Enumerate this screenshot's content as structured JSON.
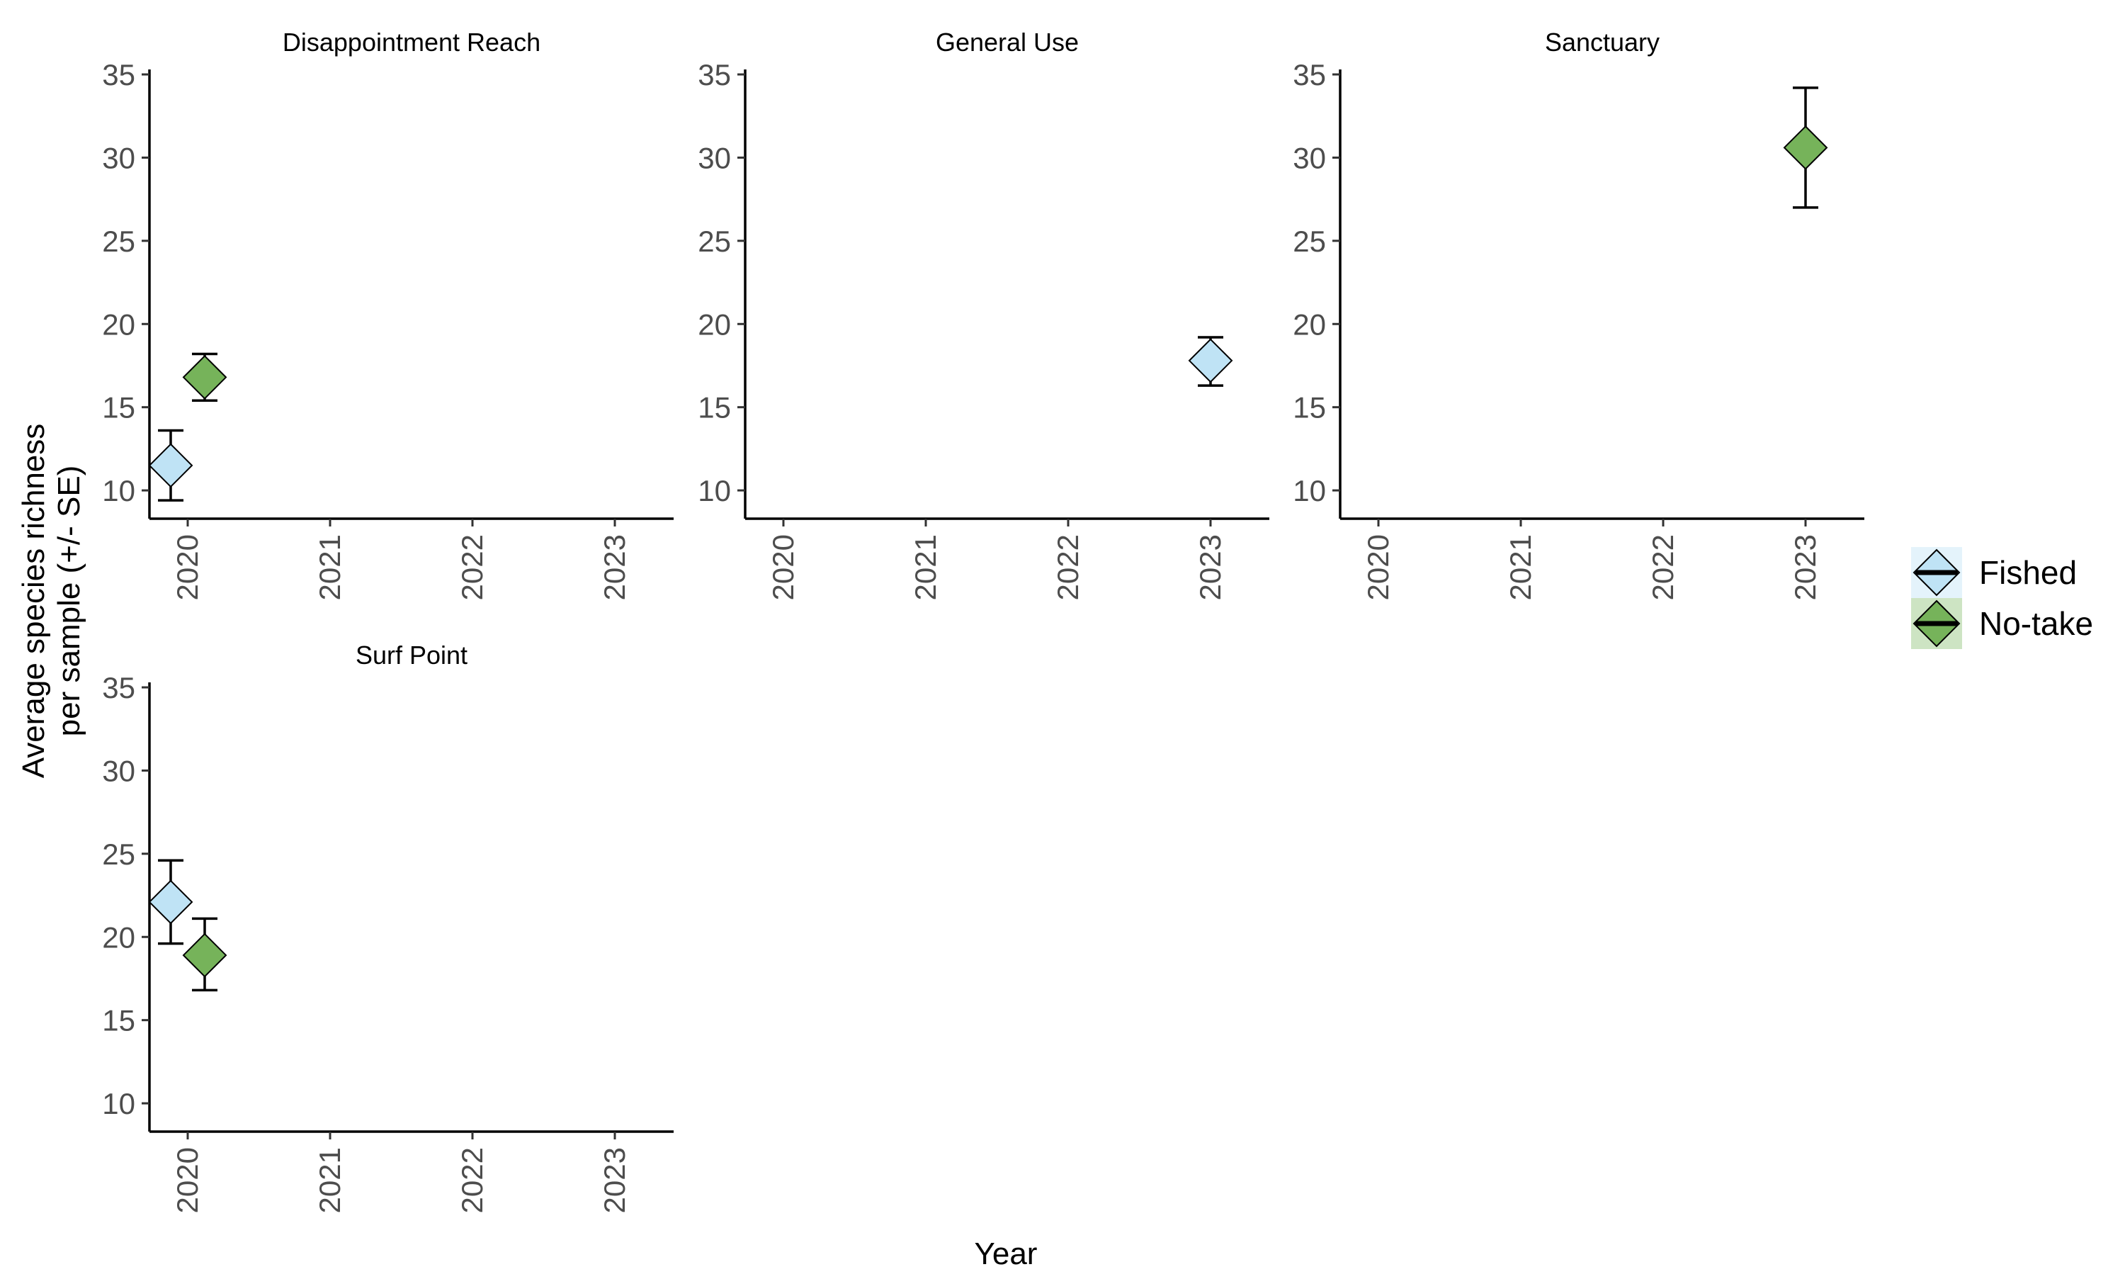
{
  "chart_data": {
    "type": "scatter",
    "xlabel": "Year",
    "ylabel_line1": "Average species richness",
    "ylabel_line2": "per sample (+/- SE)",
    "x_categories": [
      "2020",
      "2021",
      "2022",
      "2023"
    ],
    "yticks": [
      10,
      15,
      20,
      25,
      30,
      35
    ],
    "ylim": [
      8.3,
      35.3
    ],
    "legend": {
      "placement": "right",
      "entries": [
        {
          "name": "Fished",
          "color": "#bfe3f5"
        },
        {
          "name": "No-take",
          "color": "#76b35a"
        }
      ]
    },
    "panels": [
      {
        "title": "Disappointment Reach",
        "points": [
          {
            "series": "Fished",
            "year": "2020",
            "mean": 11.5,
            "lower": 9.4,
            "upper": 13.6
          },
          {
            "series": "No-take",
            "year": "2020",
            "mean": 16.8,
            "lower": 15.4,
            "upper": 18.2
          }
        ]
      },
      {
        "title": "General Use",
        "points": [
          {
            "series": "Fished",
            "year": "2023",
            "mean": 17.8,
            "lower": 16.3,
            "upper": 19.2
          }
        ]
      },
      {
        "title": "Sanctuary",
        "points": [
          {
            "series": "No-take",
            "year": "2023",
            "mean": 30.6,
            "lower": 27.0,
            "upper": 34.2
          }
        ]
      },
      {
        "title": "Surf Point",
        "points": [
          {
            "series": "Fished",
            "year": "2020",
            "mean": 22.1,
            "lower": 19.6,
            "upper": 24.6
          },
          {
            "series": "No-take",
            "year": "2020",
            "mean": 18.9,
            "lower": 16.8,
            "upper": 21.1
          }
        ]
      }
    ]
  }
}
